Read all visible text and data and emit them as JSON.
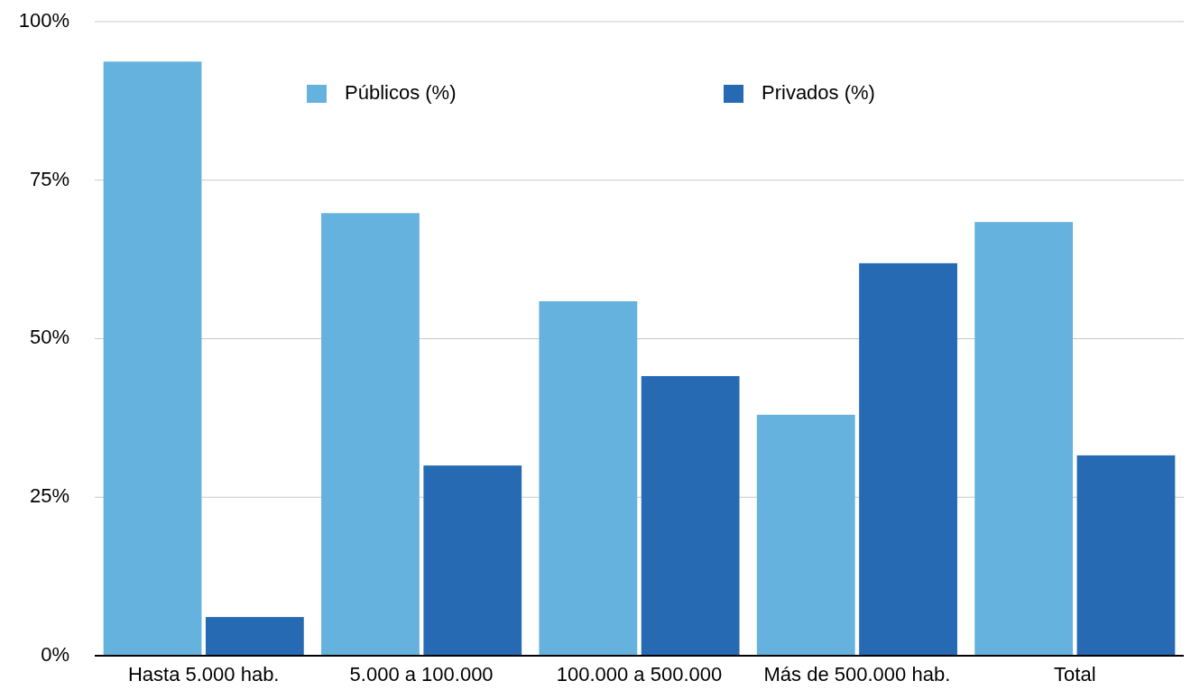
{
  "chart_data": {
    "type": "bar",
    "categories": [
      "Hasta 5.000 hab.",
      "5.000 a 100.000",
      "100.000 a 500.000",
      "Más de 500.000 hab.",
      "Total"
    ],
    "series": [
      {
        "name": "Públicos (%)",
        "color": "#64b2dd",
        "values": [
          93.7,
          69.8,
          55.9,
          38.0,
          68.4
        ]
      },
      {
        "name": "Privados (%)",
        "color": "#266ab3",
        "values": [
          6.1,
          30.0,
          44.1,
          61.9,
          31.6
        ]
      }
    ],
    "ylim": [
      0,
      100
    ],
    "yticks": [
      {
        "value": 0,
        "label": "0%"
      },
      {
        "value": 25,
        "label": "25%"
      },
      {
        "value": 50,
        "label": "50%"
      },
      {
        "value": 75,
        "label": "75%"
      },
      {
        "value": 100,
        "label": "100%"
      }
    ],
    "grid": "y",
    "legend": "top"
  }
}
